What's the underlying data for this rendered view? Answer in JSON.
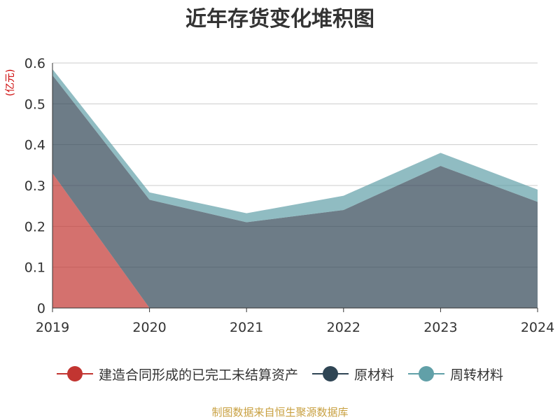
{
  "chart_data": {
    "type": "area",
    "stacked": true,
    "title": "近年存货变化堆积图",
    "unit_label": "(亿元)",
    "x": [
      "2019",
      "2020",
      "2021",
      "2022",
      "2023",
      "2024"
    ],
    "ylim": [
      0,
      0.6
    ],
    "yticks": [
      "0",
      "0.1",
      "0.2",
      "0.3",
      "0.4",
      "0.5",
      "0.6"
    ],
    "grid": true,
    "legend_position": "bottom",
    "series": [
      {
        "name": "建造合同形成的已完工未结算资产",
        "color": "#c23531",
        "values": [
          0.33,
          0,
          0,
          0,
          0,
          0
        ]
      },
      {
        "name": "原材料",
        "color": "#2f4554",
        "values": [
          0.24,
          0.265,
          0.21,
          0.24,
          0.348,
          0.26
        ]
      },
      {
        "name": "周转材料",
        "color": "#61a0a8",
        "values": [
          0.015,
          0.018,
          0.022,
          0.035,
          0.032,
          0.03
        ]
      }
    ],
    "source_note": "制图数据来自恒生聚源数据库"
  }
}
